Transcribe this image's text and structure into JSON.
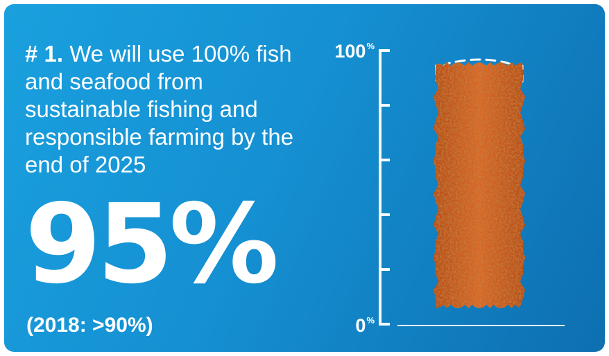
{
  "headline": {
    "number": "# 1.",
    "text": "We will use 100% fish and seafood from sustainable fishing and responsible farming by the end of 2025"
  },
  "big_value": "95%",
  "previous": "(2018: >90%)",
  "colors": {
    "background_start": "#1aa0de",
    "background_end": "#0d6fb0",
    "fish_stick": "#d9682a",
    "fish_stick_dark": "#b54d1a",
    "axis": "#ffffff"
  },
  "chart_data": {
    "type": "bar",
    "categories": [
      ""
    ],
    "values": [
      95
    ],
    "target": 100,
    "ylim": [
      0,
      100
    ],
    "tick_labels": [
      {
        "value": 100,
        "label": "100",
        "unit": "%"
      },
      {
        "value": 0,
        "label": "0",
        "unit": "%"
      }
    ],
    "minor_ticks": [
      0,
      20,
      40,
      60,
      80,
      100
    ],
    "bar_style": "fish-stick",
    "target_style": "dashed-outline",
    "grid": false,
    "legend": "none"
  }
}
